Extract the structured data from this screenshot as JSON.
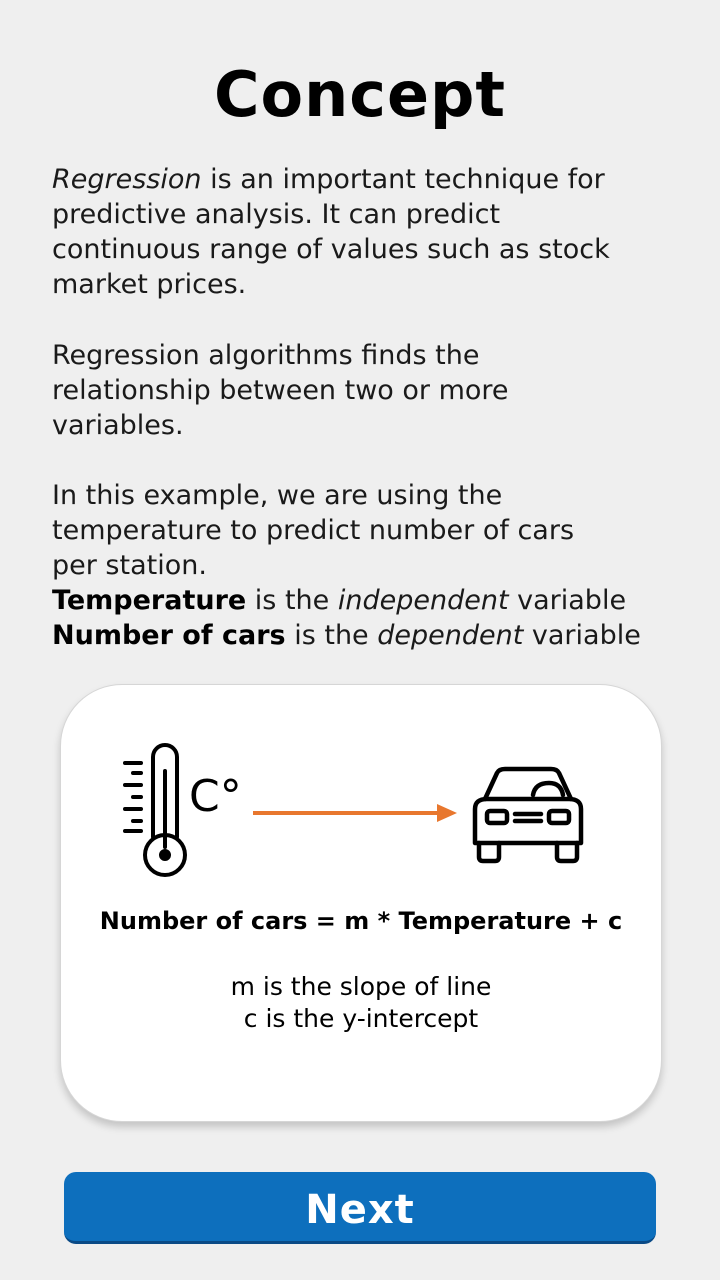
{
  "title": "Concept",
  "paragraph1": {
    "line1_italic": "Regression",
    "line1_rest": " is an important technique for",
    "line2": "predictive analysis. It can predict",
    "line3": "continuous range of values such as stock",
    "line4": "market prices."
  },
  "paragraph2": {
    "line1": "Regression algorithms finds the",
    "line2": "relationship between two or more",
    "line3": "variables."
  },
  "paragraph3": {
    "line1": "In this example, we are using the",
    "line2": "temperature to predict number of cars",
    "line3": "per station.",
    "independent": {
      "bold": "Temperature",
      "pre": " is the ",
      "italic": "independent",
      "post": " variable"
    },
    "dependent": {
      "bold": "Number of cars",
      "pre": " is the ",
      "italic": "dependent",
      "post": " variable"
    }
  },
  "card": {
    "thermometer_unit": "C°",
    "formula": "Number of cars = m * Temperature + c",
    "note1": "m is the slope of line",
    "note2": "c is the y-intercept",
    "icons": [
      "thermometer-icon",
      "arrow-right-icon",
      "car-icon"
    ]
  },
  "colors": {
    "background": "#efefef",
    "arrow": "#e8772e",
    "button": "#0d6fbd"
  },
  "next_label": "Next"
}
